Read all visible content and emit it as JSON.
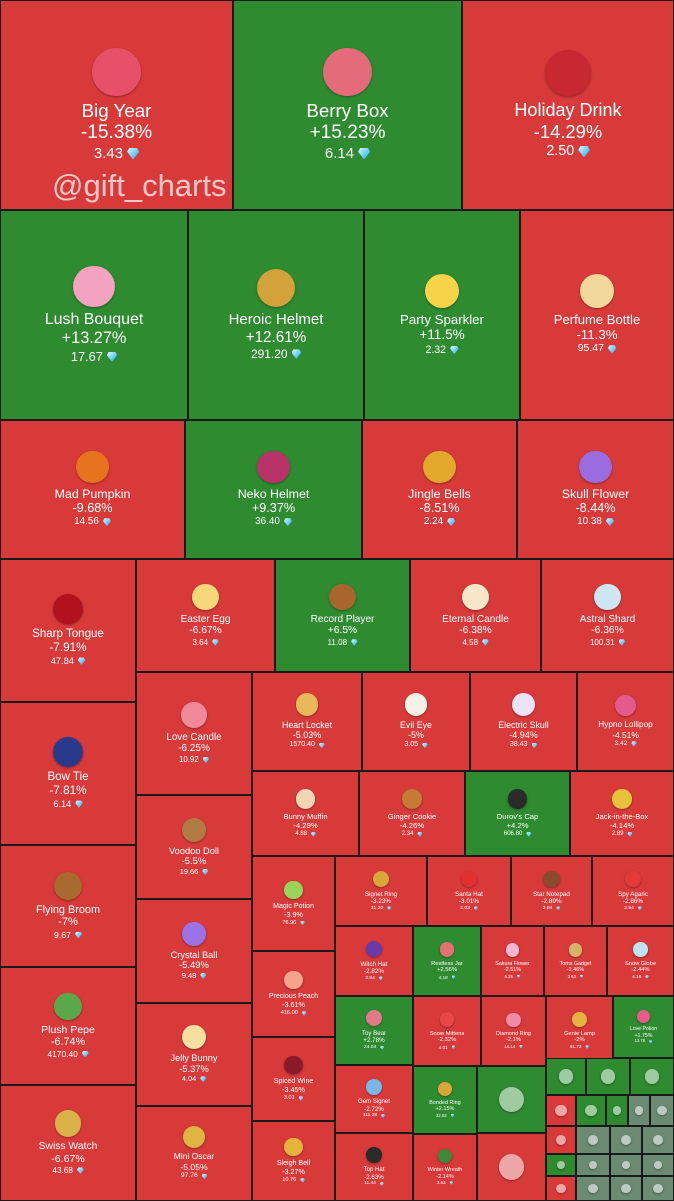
{
  "watermark": "@gift_charts",
  "colors": {
    "down": "#d83a3a",
    "up": "#2e8b30",
    "other": "#6a8a73"
  },
  "chart_data": {
    "type": "treemap",
    "items": [
      {
        "name": "Big Year",
        "change": "-15.38%",
        "price": "3.43",
        "dir": "down",
        "icon": "year-badge",
        "color": "#e8506a"
      },
      {
        "name": "Berry Box",
        "change": "+15.23%",
        "price": "6.14",
        "dir": "up",
        "icon": "berry-box",
        "color": "#e46b7a"
      },
      {
        "name": "Holiday Drink",
        "change": "-14.29%",
        "price": "2.50",
        "dir": "down",
        "icon": "holiday-drink",
        "color": "#c8282f"
      },
      {
        "name": "Lush Bouquet",
        "change": "+13.27%",
        "price": "17.67",
        "dir": "up",
        "icon": "bouquet",
        "color": "#f3a3c0"
      },
      {
        "name": "Heroic Helmet",
        "change": "+12.61%",
        "price": "291.20",
        "dir": "up",
        "icon": "helmet",
        "color": "#d4a23a"
      },
      {
        "name": "Party Sparkler",
        "change": "+11.5%",
        "price": "2.32",
        "dir": "up",
        "icon": "sparkler",
        "color": "#f7d34a"
      },
      {
        "name": "Perfume Bottle",
        "change": "-11.3%",
        "price": "95.47",
        "dir": "down",
        "icon": "perfume",
        "color": "#f2d79a"
      },
      {
        "name": "Mad Pumpkin",
        "change": "-9.68%",
        "price": "14.56",
        "dir": "down",
        "icon": "pumpkin",
        "color": "#e8731f"
      },
      {
        "name": "Neko Helmet",
        "change": "+9.37%",
        "price": "36.40",
        "dir": "up",
        "icon": "neko-helmet",
        "color": "#b8336a"
      },
      {
        "name": "Jingle Bells",
        "change": "-8.51%",
        "price": "2.24",
        "dir": "down",
        "icon": "bells",
        "color": "#e3a92c"
      },
      {
        "name": "Skull Flower",
        "change": "-8.44%",
        "price": "10.38",
        "dir": "down",
        "icon": "skull-flower",
        "color": "#9b6be0"
      },
      {
        "name": "Sharp Tongue",
        "change": "-7.91%",
        "price": "47.84",
        "dir": "down",
        "icon": "lips",
        "color": "#b1121d"
      },
      {
        "name": "Easter Egg",
        "change": "-6.67%",
        "price": "3.64",
        "dir": "down",
        "icon": "egg",
        "color": "#f5d77a"
      },
      {
        "name": "Record Player",
        "change": "+6.5%",
        "price": "11.08",
        "dir": "up",
        "icon": "record-player",
        "color": "#a8652e"
      },
      {
        "name": "Eternal Candle",
        "change": "-6.38%",
        "price": "4.58",
        "dir": "down",
        "icon": "candle",
        "color": "#f5e7c8"
      },
      {
        "name": "Astral Shard",
        "change": "-6.36%",
        "price": "100.31",
        "dir": "down",
        "icon": "crystal",
        "color": "#cde6f2"
      },
      {
        "name": "Bow Tie",
        "change": "-7.81%",
        "price": "6.14",
        "dir": "down",
        "icon": "bow-tie",
        "color": "#2a3a8a"
      },
      {
        "name": "Love Candle",
        "change": "-6.25%",
        "price": "10.92",
        "dir": "down",
        "icon": "love-candle",
        "color": "#f08a9a"
      },
      {
        "name": "Heart Locket",
        "change": "-5.03%",
        "price": "1570.40",
        "dir": "down",
        "icon": "locket",
        "color": "#e8b85a"
      },
      {
        "name": "Evil Eye",
        "change": "-5%",
        "price": "3.05",
        "dir": "down",
        "icon": "eye",
        "color": "#f4f1e6"
      },
      {
        "name": "Electric Skull",
        "change": "-4.94%",
        "price": "38.43",
        "dir": "down",
        "icon": "skull",
        "color": "#e9e3f5"
      },
      {
        "name": "Hypno Lollipop",
        "change": "-4.51%",
        "price": "3.42",
        "dir": "down",
        "icon": "lollipop",
        "color": "#e35b8e"
      },
      {
        "name": "Bunny Muffin",
        "change": "-4.29%",
        "price": "4.88",
        "dir": "down",
        "icon": "muffin",
        "color": "#f1d6b4"
      },
      {
        "name": "Ginger Cookie",
        "change": "-4.26%",
        "price": "2.34",
        "dir": "down",
        "icon": "cookie",
        "color": "#c77a35"
      },
      {
        "name": "Durov's Cap",
        "change": "+4.2%",
        "price": "606.80",
        "dir": "up",
        "icon": "cap",
        "color": "#2b2b2b"
      },
      {
        "name": "Jack-in-the-Box",
        "change": "-4.14%",
        "price": "2.89",
        "dir": "down",
        "icon": "jack-box",
        "color": "#e6c23a"
      },
      {
        "name": "Flying Broom",
        "change": "-7%",
        "price": "9.67",
        "dir": "down",
        "icon": "broom",
        "color": "#a86a2e"
      },
      {
        "name": "Voodoo Doll",
        "change": "-5.5%",
        "price": "19.66",
        "dir": "down",
        "icon": "voodoo",
        "color": "#b27b43"
      },
      {
        "name": "Magic Potion",
        "change": "-3.9%",
        "price": "76.96",
        "dir": "down",
        "icon": "potion",
        "color": "#9ad35a"
      },
      {
        "name": "Signet Ring",
        "change": "-3.23%",
        "price": "31.20",
        "dir": "down",
        "icon": "ring",
        "color": "#d9a63a"
      },
      {
        "name": "Santa Hat",
        "change": "-3.01%",
        "price": "2.03",
        "dir": "down",
        "icon": "santa-hat",
        "color": "#e03030"
      },
      {
        "name": "Star Notepad",
        "change": "-2.89%",
        "price": "2.84",
        "dir": "down",
        "icon": "notepad",
        "color": "#8a4b2e"
      },
      {
        "name": "Spy Agaric",
        "change": "-2.86%",
        "price": "3.54",
        "dir": "down",
        "icon": "mushroom",
        "color": "#e33a3a"
      },
      {
        "name": "Crystal Ball",
        "change": "-5.49%",
        "price": "9.48",
        "dir": "down",
        "icon": "crystal-ball",
        "color": "#9b73e6"
      },
      {
        "name": "Precious Peach",
        "change": "-3.61%",
        "price": "416.00",
        "dir": "down",
        "icon": "peach",
        "color": "#f4a48a"
      },
      {
        "name": "Witch Hat",
        "change": "-2.82%",
        "price": "3.94",
        "dir": "down",
        "icon": "witch-hat",
        "color": "#6a3aa8"
      },
      {
        "name": "Restless Jar",
        "change": "+2.56%",
        "price": "4.18",
        "dir": "up",
        "icon": "jar",
        "color": "#e57070"
      },
      {
        "name": "Sakura Flower",
        "change": "-2.51%",
        "price": "5.25",
        "dir": "down",
        "icon": "sakura",
        "color": "#f5b5cf"
      },
      {
        "name": "Toms Gadget",
        "change": "-2.46%",
        "price": "3.63",
        "dir": "down",
        "icon": "gadget",
        "color": "#d9b26a"
      },
      {
        "name": "Snow Globe",
        "change": "-2.44%",
        "price": "4.18",
        "dir": "down",
        "icon": "snow-globe",
        "color": "#bfe3f4"
      },
      {
        "name": "Plush Pepe",
        "change": "-6.74%",
        "price": "4170.40",
        "dir": "down",
        "icon": "frog",
        "color": "#5aa84a"
      },
      {
        "name": "Jelly Bunny",
        "change": "-5.37%",
        "price": "4.04",
        "dir": "down",
        "icon": "jelly",
        "color": "#f5e0a0"
      },
      {
        "name": "Toy Bear",
        "change": "+2.78%",
        "price": "24.04",
        "dir": "up",
        "icon": "bear",
        "color": "#e07a8a"
      },
      {
        "name": "Snow Mittens",
        "change": "-2.32%",
        "price": "4.01",
        "dir": "down",
        "icon": "mittens",
        "color": "#e64848"
      },
      {
        "name": "Diamond Ring",
        "change": "-2.1%",
        "price": "14.14",
        "dir": "down",
        "icon": "diamond-ring",
        "color": "#f08aa8"
      },
      {
        "name": "Genie Lamp",
        "change": "-2%",
        "price": "61.73",
        "dir": "down",
        "icon": "lamp",
        "color": "#e3b440"
      },
      {
        "name": "Love Potion",
        "change": "+1.75%",
        "price": "13.78",
        "dir": "up",
        "icon": "love-potion",
        "color": "#e85a8a"
      },
      {
        "name": "Spiced Wine",
        "change": "-3.45%",
        "price": "3.01",
        "dir": "down",
        "icon": "wine",
        "color": "#8a1a2a"
      },
      {
        "name": "Gem Signet",
        "change": "-2.72%",
        "price": "111.28",
        "dir": "down",
        "icon": "gem-ring",
        "color": "#7ab5e6"
      },
      {
        "name": "Bonded Ring",
        "change": "+2.15%",
        "price": "32.03",
        "dir": "up",
        "icon": "bonded-ring",
        "color": "#d9a63a"
      },
      {
        "name": "Swiss Watch",
        "change": "-6.67%",
        "price": "43.68",
        "dir": "down",
        "icon": "watch",
        "color": "#d9b24a"
      },
      {
        "name": "Mini Oscar",
        "change": "-5.05%",
        "price": "97.76",
        "dir": "down",
        "icon": "oscar",
        "color": "#e0b440"
      },
      {
        "name": "Sleigh Bell",
        "change": "-3.27%",
        "price": "10.76",
        "dir": "down",
        "icon": "sleigh-bell",
        "color": "#e3b33a"
      },
      {
        "name": "Top Hat",
        "change": "-2.63%",
        "price": "11.44",
        "dir": "down",
        "icon": "top-hat",
        "color": "#2a2a2a"
      },
      {
        "name": "Winter Wreath",
        "change": "-2.14%",
        "price": "3.63",
        "dir": "down",
        "icon": "wreath",
        "color": "#3a8a3a"
      }
    ]
  }
}
